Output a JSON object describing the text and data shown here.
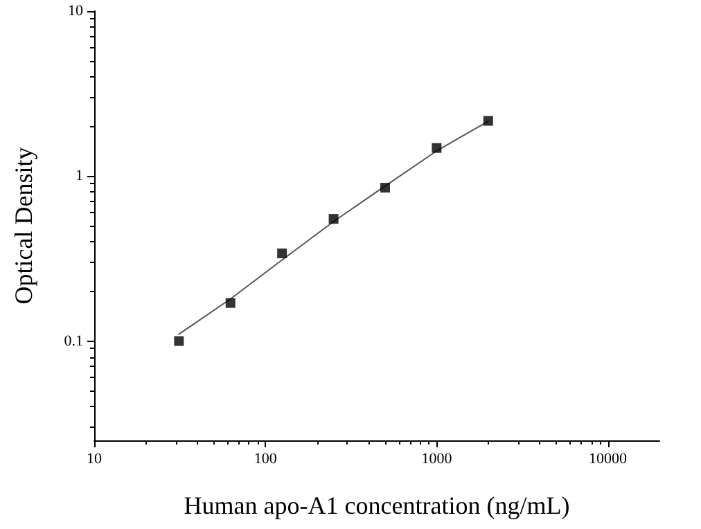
{
  "chart_data": {
    "type": "scatter",
    "xlabel": "Human apo-A1 concentration (ng/mL)",
    "ylabel": "Optical Density",
    "log": "xy",
    "marker": "square",
    "grid": false,
    "xlim": [
      10,
      20000
    ],
    "xticks": [
      10,
      100,
      1000,
      10000
    ],
    "ylim": [
      0.025,
      10
    ],
    "yticks": [
      0.1,
      1,
      10
    ],
    "series": [
      {
        "color": "#000000",
        "x": [
          31.25,
          62.5,
          125,
          250,
          500,
          1000,
          2000
        ],
        "values": [
          0.1,
          0.17,
          0.34,
          0.55,
          0.85,
          1.48,
          2.16
        ]
      },
      {
        "type": "line",
        "color": "#555555",
        "marker": "none",
        "x": [
          31.25,
          62.5,
          125,
          250,
          500,
          1000,
          2000
        ],
        "values": [
          0.11,
          0.18,
          0.31,
          0.53,
          0.87,
          1.42,
          2.15
        ]
      }
    ]
  }
}
